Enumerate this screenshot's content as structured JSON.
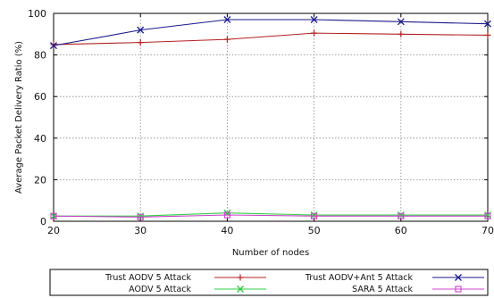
{
  "chart_data": {
    "type": "line",
    "xlabel": "Number of nodes",
    "ylabel": "Average Packet Delivery Ratio (%)",
    "x": [
      20,
      30,
      40,
      50,
      60,
      70
    ],
    "xlim": [
      20,
      70
    ],
    "ylim": [
      0,
      100
    ],
    "xticks": [
      "20",
      "30",
      "40",
      "50",
      "60",
      "70"
    ],
    "yticks": [
      "0",
      "20",
      "40",
      "60",
      "80",
      "100"
    ],
    "grid": true,
    "legend_position": "bottom",
    "series": [
      {
        "name": "Trust AODV 5 Attack",
        "color": "#b22222",
        "marker": "plus",
        "values": [
          85,
          86,
          87.5,
          90.5,
          90,
          89.5
        ]
      },
      {
        "name": "Trust AODV+Ant 5 Attack",
        "color": "#1a1a8c",
        "marker": "x",
        "values": [
          84.5,
          92,
          97,
          97,
          96,
          95
        ]
      },
      {
        "name": "AODV 5 Attack",
        "color": "#2ecc40",
        "marker": "x",
        "values": [
          2.5,
          2.5,
          4,
          3,
          3,
          3
        ]
      },
      {
        "name": "SARA 5 Attack",
        "color": "#cc44cc",
        "marker": "square",
        "values": [
          2.5,
          2,
          3,
          2.5,
          2.5,
          2.5
        ]
      }
    ]
  }
}
